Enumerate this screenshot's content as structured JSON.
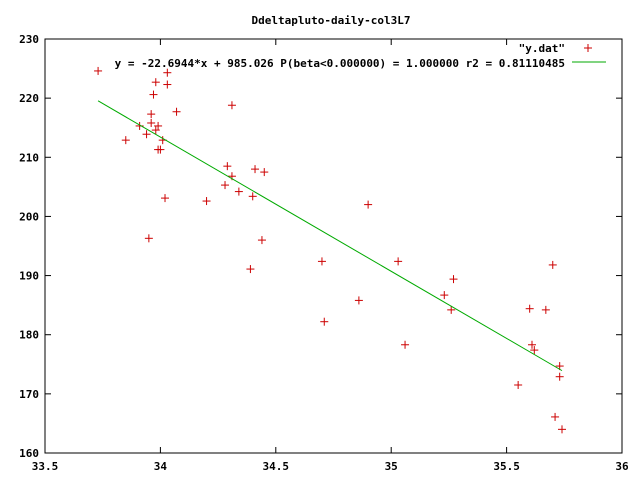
{
  "chart_data": {
    "type": "scatter",
    "title": "Ddeltapluto-daily-col3L7",
    "xlim": [
      33.5,
      36
    ],
    "ylim": [
      160,
      230
    ],
    "xticks": [
      "33.5",
      "34",
      "34.5",
      "35",
      "35.5",
      "36"
    ],
    "yticks": [
      "160",
      "170",
      "180",
      "190",
      "200",
      "210",
      "220",
      "230"
    ],
    "grid": false,
    "legend_position": "top-right",
    "series": [
      {
        "name": "\"y.dat\"",
        "kind": "points",
        "color": "#cc0000",
        "points": [
          [
            33.73,
            224.6
          ],
          [
            33.85,
            212.9
          ],
          [
            33.91,
            215.3
          ],
          [
            33.94,
            213.9
          ],
          [
            33.95,
            196.3
          ],
          [
            33.96,
            217.3
          ],
          [
            33.96,
            215.8
          ],
          [
            33.97,
            220.6
          ],
          [
            33.98,
            222.7
          ],
          [
            33.98,
            214.6
          ],
          [
            33.99,
            215.3
          ],
          [
            33.99,
            211.3
          ],
          [
            34.0,
            211.3
          ],
          [
            34.01,
            212.9
          ],
          [
            34.02,
            203.1
          ],
          [
            34.03,
            222.3
          ],
          [
            34.03,
            224.3
          ],
          [
            34.07,
            217.7
          ],
          [
            34.2,
            202.6
          ],
          [
            34.28,
            205.3
          ],
          [
            34.29,
            208.5
          ],
          [
            34.31,
            218.8
          ],
          [
            34.31,
            206.8
          ],
          [
            34.34,
            204.2
          ],
          [
            34.39,
            191.1
          ],
          [
            34.4,
            203.4
          ],
          [
            34.41,
            208.0
          ],
          [
            34.44,
            196.0
          ],
          [
            34.45,
            207.5
          ],
          [
            34.7,
            192.4
          ],
          [
            34.71,
            182.2
          ],
          [
            34.86,
            185.8
          ],
          [
            34.9,
            202.0
          ],
          [
            35.03,
            192.4
          ],
          [
            35.06,
            178.3
          ],
          [
            35.23,
            186.7
          ],
          [
            35.26,
            184.2
          ],
          [
            35.27,
            189.4
          ],
          [
            35.55,
            171.5
          ],
          [
            35.6,
            184.4
          ],
          [
            35.61,
            178.3
          ],
          [
            35.62,
            177.4
          ],
          [
            35.67,
            184.2
          ],
          [
            35.7,
            191.8
          ],
          [
            35.71,
            166.1
          ],
          [
            35.73,
            174.7
          ],
          [
            35.73,
            172.9
          ],
          [
            35.74,
            164.0
          ]
        ]
      },
      {
        "name": "y = -22.6944*x + 985.026 P(beta<0.000000) = 1.000000 r2 = 0.81110485",
        "kind": "line",
        "color": "#00aa00",
        "slope": -22.6944,
        "intercept": 985.026,
        "x_range": [
          33.73,
          35.74
        ]
      }
    ]
  }
}
